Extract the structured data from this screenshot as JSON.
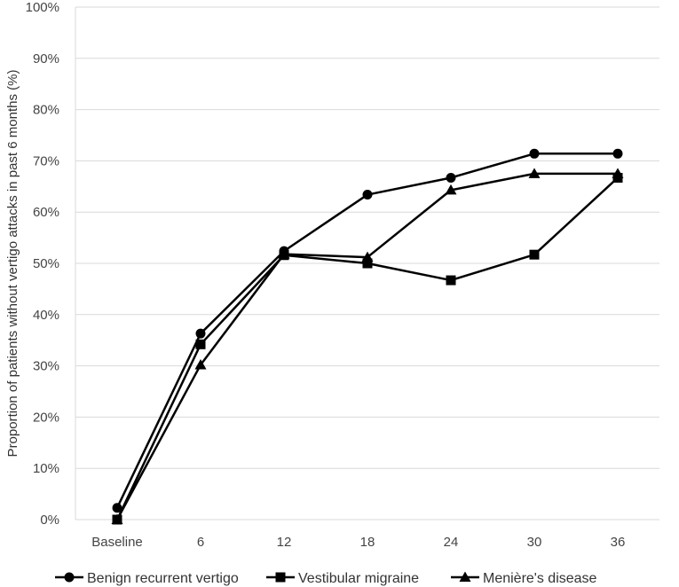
{
  "chart_data": {
    "type": "line",
    "title": "",
    "xlabel": "",
    "ylabel": "Proportion of patients without vertigo attacks in past 6 months (%)",
    "categories": [
      "Baseline",
      "6",
      "12",
      "18",
      "24",
      "30",
      "36"
    ],
    "ylim": [
      0,
      100
    ],
    "yticks": [
      "0%",
      "10%",
      "20%",
      "30%",
      "40%",
      "50%",
      "60%",
      "70%",
      "80%",
      "90%",
      "100%"
    ],
    "ytick_values": [
      0,
      10,
      20,
      30,
      40,
      50,
      60,
      70,
      80,
      90,
      100
    ],
    "grid": "horizontal",
    "legend_position": "bottom",
    "series": [
      {
        "name": "Benign recurrent vertigo",
        "marker": "circle",
        "values": [
          2.3,
          36.3,
          52.4,
          63.4,
          66.7,
          71.4,
          71.4
        ]
      },
      {
        "name": "Vestibular migraine",
        "marker": "square",
        "values": [
          0,
          34.2,
          51.6,
          50.0,
          46.7,
          51.7,
          66.7
        ]
      },
      {
        "name": "Menière's disease",
        "marker": "triangle",
        "values": [
          0,
          30.2,
          51.8,
          51.2,
          64.3,
          67.5,
          67.5
        ]
      }
    ],
    "colors": {
      "line": "#000000",
      "grid": "#d9d9d9",
      "text": "#444444"
    }
  }
}
